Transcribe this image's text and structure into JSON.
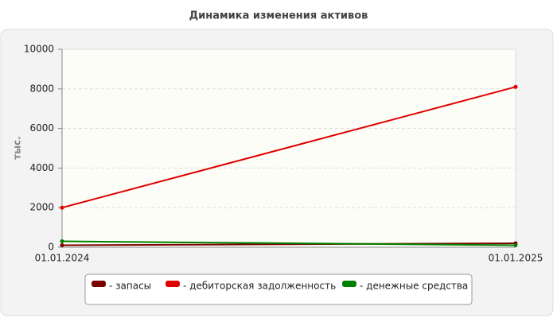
{
  "chart_data": {
    "type": "line",
    "title": "Динамика изменения активов",
    "y_label": "тыс.",
    "categories": [
      "01.01.2024",
      "01.01.2025"
    ],
    "series": [
      {
        "name": "- запасы",
        "color": "#7a0000",
        "values": [
          100,
          200
        ]
      },
      {
        "name": "- дебиторская задолженность",
        "color": "#e00000",
        "values": [
          2000,
          8100
        ]
      },
      {
        "name": "- денежные средства",
        "color": "#008000",
        "values": [
          300,
          100
        ]
      }
    ],
    "ylim": [
      0,
      10000
    ],
    "yticks": [
      0,
      2000,
      4000,
      6000,
      8000,
      10000
    ],
    "grid": true
  }
}
